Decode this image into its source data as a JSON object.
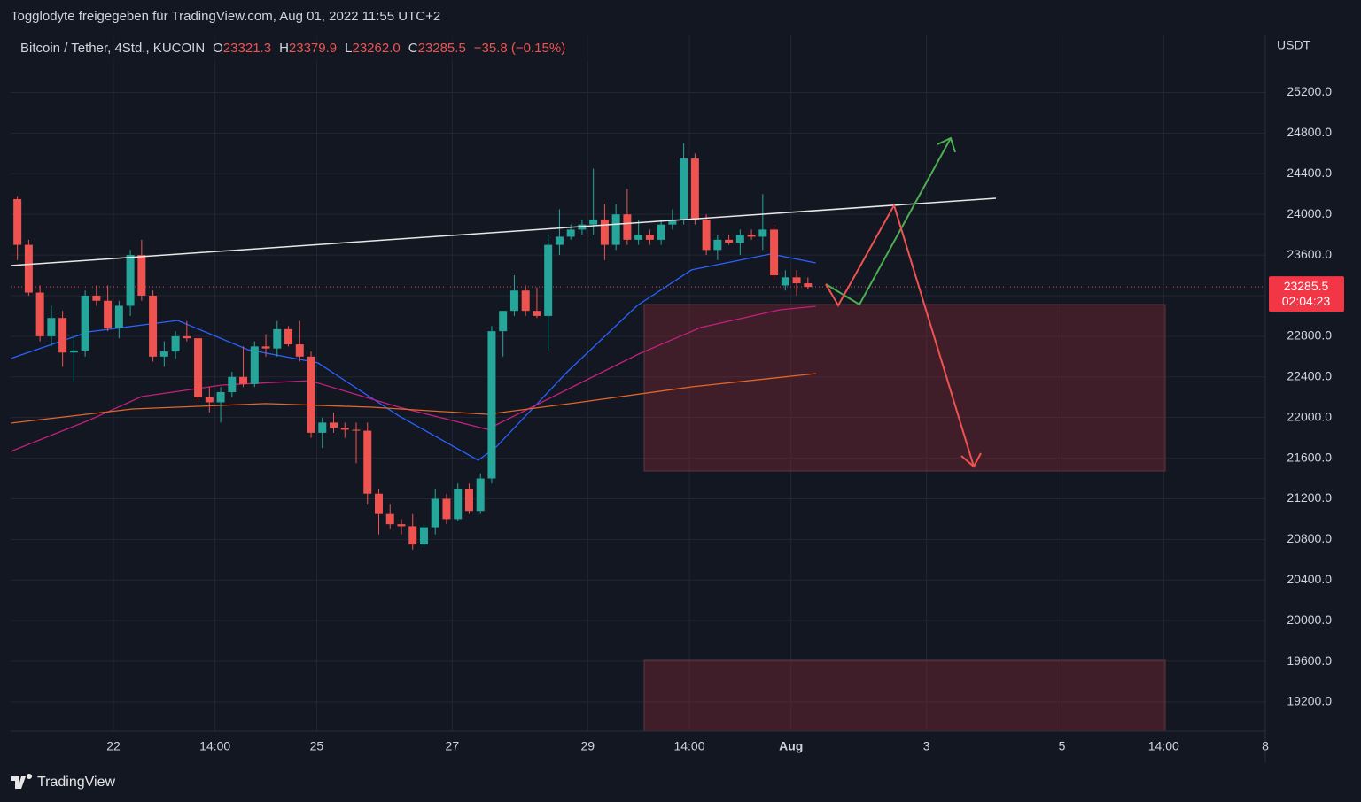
{
  "header": {
    "share_text": "Togglodyte freigegeben für TradingView.com, Aug 01, 2022 11:55 UTC+2",
    "symbol": "Bitcoin / Tether, 4Std., KUCOIN",
    "ohlc": [
      {
        "label": "O",
        "value": "23321.3"
      },
      {
        "label": "H",
        "value": "23379.9"
      },
      {
        "label": "L",
        "value": "23262.0"
      },
      {
        "label": "C",
        "value": "23285.5"
      }
    ],
    "change": "−35.8 (−0.15%)"
  },
  "footer": {
    "brand": "TradingView"
  },
  "chart_data": {
    "type": "candlestick",
    "y_unit": "USDT",
    "up_color": "#26a69a",
    "down_color": "#ef5350",
    "grid": true,
    "xlim": [
      -9.1,
      102
    ],
    "ylim": [
      18912,
      25762
    ],
    "xticks": [
      {
        "value": 0,
        "label": "22"
      },
      {
        "value": 9,
        "label": "14:00"
      },
      {
        "value": 18,
        "label": "25"
      },
      {
        "value": 30,
        "label": "27"
      },
      {
        "value": 42,
        "label": "29"
      },
      {
        "value": 51,
        "label": "14:00"
      },
      {
        "value": 60,
        "label": "Aug"
      },
      {
        "value": 72,
        "label": "3"
      },
      {
        "value": 84,
        "label": "5"
      },
      {
        "value": 93,
        "label": "14:00"
      },
      {
        "value": 102,
        "label": "8"
      }
    ],
    "yticks": [
      {
        "value": 19200,
        "label": "19200.0"
      },
      {
        "value": 19600,
        "label": "19600.0"
      },
      {
        "value": 20000,
        "label": "20000.0"
      },
      {
        "value": 20400,
        "label": "20400.0"
      },
      {
        "value": 20800,
        "label": "20800.0"
      },
      {
        "value": 21200,
        "label": "21200.0"
      },
      {
        "value": 21600,
        "label": "21600.0"
      },
      {
        "value": 22000,
        "label": "22000.0"
      },
      {
        "value": 22400,
        "label": "22400.0"
      },
      {
        "value": 22800,
        "label": "22800.0"
      },
      {
        "value": 23200,
        "label": "23200.0"
      },
      {
        "value": 23600,
        "label": "23600.0"
      },
      {
        "value": 24000,
        "label": "24000.0"
      },
      {
        "value": 24400,
        "label": "24400.0"
      },
      {
        "value": 24800,
        "label": "24800.0"
      },
      {
        "value": 25200,
        "label": "25200.0"
      }
    ],
    "last_price": 23285.5,
    "countdown": "02:04:23",
    "last_price_color": "#f23645",
    "x": [
      -8.5,
      -7.5,
      -6.5,
      -5.5,
      -4.5,
      -3.5,
      -2.5,
      -1.5,
      -0.5,
      0.5,
      1.5,
      2.5,
      3.5,
      4.5,
      5.5,
      6.5,
      7.5,
      8.5,
      9.5,
      10.5,
      11.5,
      12.5,
      13.5,
      14.5,
      15.5,
      16.5,
      17.5,
      18.5,
      19.5,
      20.5,
      21.5,
      22.5,
      23.5,
      24.5,
      25.5,
      26.5,
      27.5,
      28.5,
      29.5,
      30.5,
      31.5,
      32.5,
      33.5,
      34.5,
      35.5,
      36.5,
      37.5,
      38.5,
      39.5,
      40.5,
      41.5,
      42.5,
      43.5,
      44.5,
      45.5,
      46.5,
      47.5,
      48.5,
      49.5,
      50.5,
      51.5,
      52.5,
      53.5,
      54.5,
      55.5,
      56.5,
      57.5,
      58.5,
      59.5,
      60.5,
      61.5
    ],
    "open": [
      24150,
      23700,
      23230,
      22800,
      22980,
      22640,
      22660,
      23200,
      23150,
      22880,
      23100,
      23600,
      23200,
      22600,
      22650,
      22800,
      22780,
      22200,
      22150,
      22250,
      22400,
      22330,
      22700,
      22680,
      22870,
      22720,
      22600,
      21850,
      21950,
      21900,
      21880,
      21870,
      21250,
      21050,
      20950,
      20930,
      20750,
      20920,
      21200,
      21000,
      21300,
      21080,
      21400,
      22850,
      23050,
      23250,
      23050,
      23000,
      23700,
      23780,
      23850,
      23900,
      23950,
      23700,
      24000,
      23750,
      23800,
      23750,
      23900,
      23950,
      24550,
      23950,
      23650,
      23750,
      23720,
      23800,
      23780,
      23850,
      23300,
      23380,
      23321.3
    ],
    "high": [
      24180,
      23750,
      23300,
      23100,
      23050,
      22800,
      23250,
      23300,
      23300,
      23150,
      23650,
      23750,
      23250,
      22750,
      22850,
      22950,
      22800,
      22300,
      22300,
      22450,
      22700,
      22750,
      22820,
      22950,
      22900,
      22950,
      22650,
      22000,
      22050,
      21950,
      21950,
      21950,
      21300,
      21150,
      21000,
      21050,
      20950,
      21300,
      21250,
      21350,
      21350,
      21450,
      22900,
      23050,
      23400,
      23300,
      23280,
      23800,
      24050,
      23900,
      23950,
      24450,
      24100,
      24100,
      24250,
      23950,
      23850,
      23950,
      24050,
      24700,
      24600,
      24000,
      23800,
      23800,
      23850,
      23850,
      24200,
      23900,
      23450,
      23450,
      23379.9
    ],
    "low": [
      23550,
      23200,
      22750,
      22700,
      22500,
      22350,
      22600,
      23100,
      22850,
      22780,
      23000,
      23150,
      22550,
      22500,
      22580,
      22750,
      22150,
      22050,
      21950,
      22200,
      22300,
      22300,
      22600,
      22600,
      22700,
      22550,
      21800,
      21700,
      21850,
      21800,
      21550,
      21150,
      20850,
      20900,
      20850,
      20700,
      20720,
      20850,
      20950,
      20980,
      21050,
      21050,
      21350,
      22600,
      23000,
      23000,
      22980,
      22650,
      23600,
      23750,
      23800,
      23800,
      23550,
      23650,
      23700,
      23700,
      23700,
      23700,
      23850,
      23900,
      23900,
      23600,
      23550,
      23700,
      23600,
      23750,
      23650,
      23350,
      23250,
      23200,
      23262
    ],
    "close": [
      23700,
      23230,
      22800,
      22980,
      22640,
      22660,
      23200,
      23150,
      22880,
      23100,
      23600,
      23200,
      22600,
      22650,
      22800,
      22780,
      22200,
      22150,
      22250,
      22400,
      22330,
      22700,
      22680,
      22870,
      22720,
      22600,
      21850,
      21950,
      21900,
      21880,
      21870,
      21250,
      21050,
      20950,
      20930,
      20750,
      20920,
      21200,
      21000,
      21300,
      21080,
      21400,
      22850,
      23050,
      23250,
      23050,
      23000,
      23700,
      23780,
      23850,
      23900,
      23950,
      23700,
      24000,
      23750,
      23800,
      23750,
      23900,
      23950,
      24550,
      23950,
      23650,
      23750,
      23720,
      23800,
      23780,
      23850,
      23400,
      23380,
      23321.3,
      23285.5
    ],
    "overlays": [
      {
        "color": "#2962ff",
        "x": [
          -9.1,
          -2.2,
          5.7,
          11.9,
          18.1,
          25.3,
          32.3,
          33.9,
          40.2,
          46.4,
          51.2,
          58.2,
          62.2
        ],
        "values": [
          22581,
          22843,
          22956,
          22668,
          22538,
          22015,
          21579,
          21710,
          22450,
          23104,
          23453,
          23610,
          23522
        ]
      },
      {
        "color": "#c2207d",
        "x": [
          -9.1,
          -2.2,
          2.5,
          9.6,
          17.4,
          25.3,
          33.1,
          40.2,
          46.5,
          52,
          59,
          62.2
        ],
        "values": [
          21666,
          21971,
          22206,
          22320,
          22363,
          22102,
          21884,
          22276,
          22625,
          22886,
          23060,
          23095
        ]
      },
      {
        "color": "#e0662c",
        "x": [
          -9.1,
          1.7,
          13.5,
          22.9,
          33.1,
          41,
          51.2,
          62.2
        ],
        "values": [
          21945,
          22084,
          22137,
          22102,
          22032,
          22145,
          22302,
          22433
        ]
      }
    ]
  }
}
